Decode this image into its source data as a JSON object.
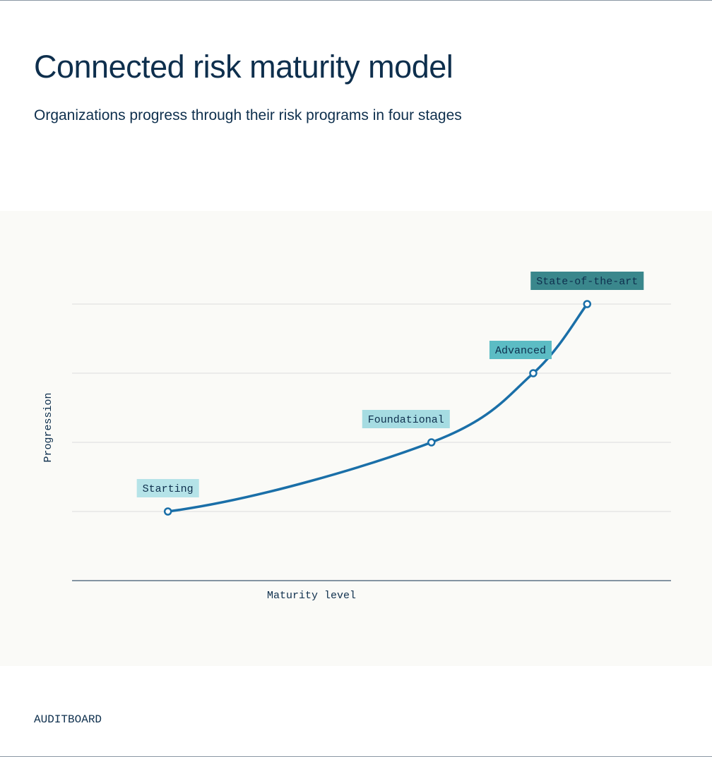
{
  "header": {
    "title": "Connected risk maturity model",
    "subtitle": "Organizations progress through their risk programs in four stages"
  },
  "chart_data": {
    "type": "line",
    "x_label": "Maturity level",
    "y_label": "Progression",
    "xlim": [
      0,
      10
    ],
    "ylim": [
      0,
      4
    ],
    "yticks": [
      1,
      2,
      3,
      4
    ],
    "grid": true,
    "series": [
      {
        "color": "#1a6fa8",
        "x": [
          1.6,
          6.0,
          7.7,
          8.6
        ],
        "values": [
          1,
          2,
          3,
          4
        ],
        "labels": [
          "Starting",
          "Foundational",
          "Advanced",
          "State-of-the-art"
        ],
        "label_colors": [
          "#b5e3e8",
          "#a6dce2",
          "#5cbcc4",
          "#3a878c"
        ]
      }
    ]
  },
  "footer": {
    "brand": "AUDITBOARD"
  }
}
